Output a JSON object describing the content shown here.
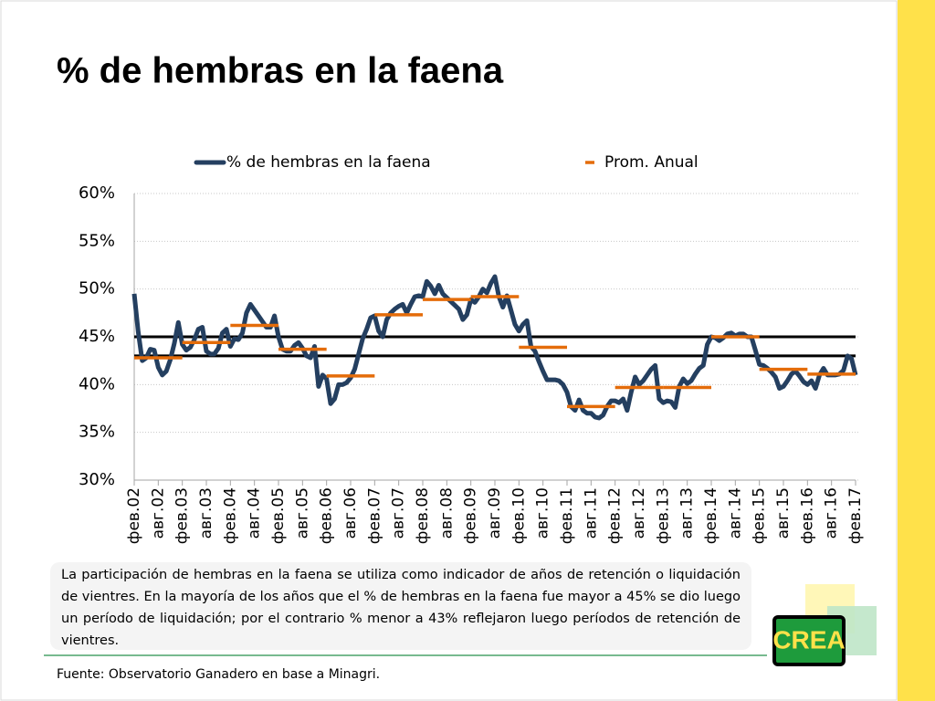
{
  "chart_data": {
    "type": "line",
    "title": "% de hembras en la faena",
    "categories": [
      "фев.02",
      null,
      null,
      null,
      null,
      null,
      "авг.02",
      null,
      null,
      null,
      null,
      null,
      "фев.03",
      null,
      null,
      null,
      null,
      null,
      "авг.03",
      null,
      null,
      null,
      null,
      null,
      "фев.04",
      null,
      null,
      null,
      null,
      null,
      "авг.04",
      null,
      null,
      null,
      null,
      null,
      "фев.05",
      null,
      null,
      null,
      null,
      null,
      "авг.05",
      null,
      null,
      null,
      null,
      null,
      "фев.06",
      null,
      null,
      null,
      null,
      null,
      "авг.06",
      null,
      null,
      null,
      null,
      null,
      "фев.07",
      null,
      null,
      null,
      null,
      null,
      "авг.07",
      null,
      null,
      null,
      null,
      null,
      "фев.08",
      null,
      null,
      null,
      null,
      null,
      "авг.08",
      null,
      null,
      null,
      null,
      null,
      "фев.09",
      null,
      null,
      null,
      null,
      null,
      "авг.09",
      null,
      null,
      null,
      null,
      null,
      "фев.10",
      null,
      null,
      null,
      null,
      null,
      "авг.10",
      null,
      null,
      null,
      null,
      null,
      "фев.11",
      null,
      null,
      null,
      null,
      null,
      "авг.11",
      null,
      null,
      null,
      null,
      null,
      "фев.12",
      null,
      null,
      null,
      null,
      null,
      "авг.12",
      null,
      null,
      null,
      null,
      null,
      "фев.13",
      null,
      null,
      null,
      null,
      null,
      "авг.13",
      null,
      null,
      null,
      null,
      null,
      "фев.14",
      null,
      null,
      null,
      null,
      null,
      "авг.14",
      null,
      null,
      null,
      null,
      null,
      "фев.15",
      null,
      null,
      null,
      null,
      null,
      "авг.15",
      null,
      null,
      null,
      null,
      null,
      "фев.16",
      null,
      null,
      null,
      null,
      null,
      "авг.16",
      null,
      null,
      null,
      null,
      null,
      "фев.17"
    ],
    "series": [
      {
        "name": "% de hembras en la faena",
        "color": "#243f60",
        "values": [
          49.5,
          45.5,
          42.5,
          42.8,
          43.7,
          43.6,
          41.8,
          41,
          41.4,
          42.6,
          44.3,
          46.5,
          44.2,
          43.6,
          43.9,
          44.7,
          45.8,
          46,
          43.5,
          43.2,
          43.2,
          43.8,
          45.4,
          45.8,
          44,
          44.8,
          44.7,
          45.4,
          47.5,
          48.4,
          47.8,
          47.2,
          46.6,
          46,
          46,
          47.2,
          45,
          43.7,
          43.5,
          43.5,
          44.1,
          44.4,
          43.8,
          43,
          42.8,
          44,
          39.8,
          41,
          40.6,
          38,
          38.5,
          40,
          40,
          40.2,
          40.7,
          41.6,
          43.2,
          44.8,
          45.8,
          47,
          47.2,
          45.6,
          45,
          46.8,
          47.5,
          47.9,
          48.2,
          48.4,
          47.5,
          48.4,
          49.2,
          49.3,
          49.2,
          50.8,
          50.3,
          49.5,
          50.4,
          49.5,
          49.1,
          48.7,
          48.3,
          47.9,
          46.8,
          47.3,
          48.9,
          48.6,
          49.2,
          50,
          49.6,
          50.6,
          51.3,
          49.2,
          48.1,
          49.3,
          47.8,
          46.3,
          45.6,
          46.3,
          46.7,
          44,
          43.5,
          42.4,
          41.4,
          40.5,
          40.5,
          40.5,
          40.4,
          40,
          39.2,
          37.7,
          37.3,
          38.4,
          37.3,
          37,
          37,
          36.6,
          36.5,
          36.8,
          37.7,
          38.3,
          38.3,
          38.1,
          38.5,
          37.3,
          39.2,
          40.8,
          40,
          40.4,
          41,
          41.6,
          42,
          38.5,
          38.1,
          38.3,
          38.2,
          37.6,
          39.8,
          40.6,
          40.1,
          40.4,
          41.1,
          41.7,
          42,
          44.2,
          45,
          44.9,
          44.6,
          44.9,
          45.3,
          45.4,
          45.1,
          45.3,
          45.3,
          45,
          45,
          43.6,
          42.1,
          42,
          41.7,
          41.3,
          40.8,
          39.6,
          39.8,
          40.4,
          41.1,
          41.4,
          40.9,
          40.3,
          40,
          40.4,
          39.6,
          41,
          41.7,
          41,
          41,
          41,
          41.1,
          41.5,
          43,
          42.7,
          41
        ]
      },
      {
        "name": "Prom. Anual",
        "color": "#e46c0a",
        "values": [
          null,
          null,
          null,
          null,
          null,
          null,
          42.8,
          null,
          null,
          null,
          null,
          null,
          null,
          null,
          null,
          null,
          null,
          null,
          44.4,
          null,
          null,
          null,
          null,
          null,
          null,
          null,
          null,
          null,
          null,
          null,
          46.2,
          null,
          null,
          null,
          null,
          null,
          null,
          null,
          null,
          null,
          null,
          null,
          43.7,
          null,
          null,
          null,
          null,
          null,
          null,
          null,
          null,
          null,
          null,
          null,
          40.9,
          null,
          null,
          null,
          null,
          null,
          null,
          null,
          null,
          null,
          null,
          null,
          47.3,
          null,
          null,
          null,
          null,
          null,
          null,
          null,
          null,
          null,
          null,
          null,
          48.9,
          null,
          null,
          null,
          null,
          null,
          null,
          null,
          null,
          null,
          null,
          null,
          49.2,
          null,
          null,
          null,
          null,
          null,
          null,
          null,
          null,
          null,
          null,
          null,
          43.9,
          null,
          null,
          null,
          null,
          null,
          null,
          null,
          null,
          null,
          null,
          null,
          37.7,
          null,
          null,
          null,
          null,
          null,
          null,
          null,
          null,
          null,
          null,
          null,
          39.7,
          null,
          null,
          null,
          null,
          null,
          null,
          null,
          null,
          null,
          null,
          null,
          39.7,
          null,
          null,
          null,
          null,
          null,
          null,
          null,
          null,
          null,
          null,
          null,
          45,
          null,
          null,
          null,
          null,
          null,
          null,
          null,
          null,
          null,
          null,
          null,
          41.6,
          null,
          null,
          null,
          null,
          null,
          null,
          null,
          null,
          null,
          null,
          null,
          41.1,
          null,
          null,
          null,
          null,
          null,
          null
        ]
      }
    ],
    "reference_lines": [
      45,
      43
    ],
    "ylim": [
      30,
      60
    ],
    "yticks": [
      {
        "value": 30,
        "label": "30%"
      },
      {
        "value": 35,
        "label": "35%"
      },
      {
        "value": 40,
        "label": "40%"
      },
      {
        "value": 45,
        "label": "45%"
      },
      {
        "value": 50,
        "label": "50%"
      },
      {
        "value": 55,
        "label": "55%"
      },
      {
        "value": 60,
        "label": "60%"
      }
    ],
    "grid": true,
    "legend": "top"
  },
  "description": "La participación de hembras en la faena se utiliza como indicador de años de retención o liquidación de vientres. En la mayoría de los años que el % de hembras en la faena fue mayor a 45%  se dio luego un período de liquidación; por el contrario % menor a 43% reflejaron luego períodos de retención de vientres.",
  "source": "Fuente: Observatorio Ganadero en base a Minagri.",
  "logo": "CREA"
}
